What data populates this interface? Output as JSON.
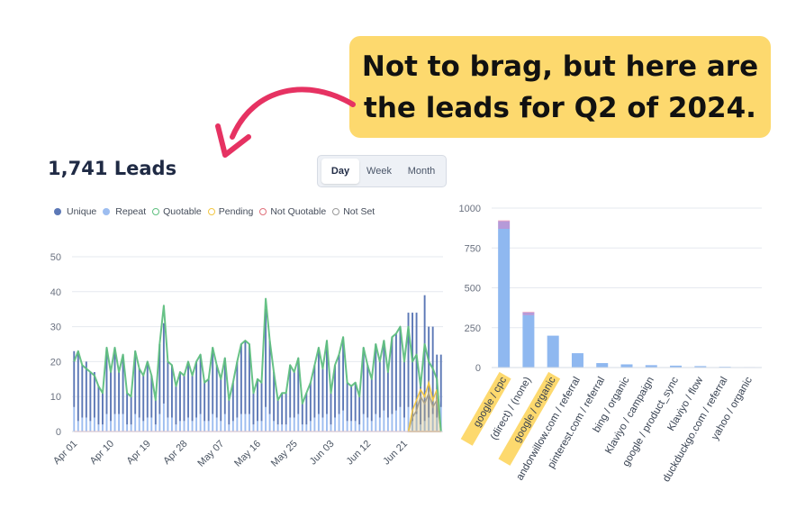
{
  "callout": {
    "line1": "Not to brag, but here are",
    "line2": "the leads for Q2 of 2024.",
    "background": "#fdd96e"
  },
  "arrow_color": "#e63262",
  "header": {
    "title": "1,741 Leads"
  },
  "range_toggle": {
    "options": [
      "Day",
      "Week",
      "Month"
    ],
    "selected": "Day"
  },
  "legend": [
    {
      "label": "Unique",
      "color": "#5c78b6",
      "style": "dot"
    },
    {
      "label": "Repeat",
      "color": "#9dbdf0",
      "style": "dot"
    },
    {
      "label": "Quotable",
      "color": "#5fbf7f",
      "style": "ring"
    },
    {
      "label": "Pending",
      "color": "#f2c744",
      "style": "ring"
    },
    {
      "label": "Not Quotable",
      "color": "#e0707a",
      "style": "ring"
    },
    {
      "label": "Not Set",
      "color": "#9a9a9a",
      "style": "ring"
    }
  ],
  "chart_data": [
    {
      "type": "bar",
      "subtype": "stacked bar with line overlay",
      "xlabel": "",
      "ylabel": "",
      "ylim": [
        0,
        50
      ],
      "yticks": [
        0,
        10,
        20,
        30,
        40,
        50
      ],
      "grid": true,
      "legend_position": "top-left",
      "xtick_labels": [
        "Apr 01",
        "Apr 10",
        "Apr 19",
        "Apr 28",
        "May 07",
        "May 16",
        "May 25",
        "Jun 03",
        "Jun 12",
        "Jun 21"
      ],
      "x_start": "2024-04-01",
      "x_end": "2024-06-30",
      "series": [
        {
          "name": "Unique",
          "values": [
            16,
            20,
            15,
            16,
            14,
            13,
            11,
            9,
            19,
            14,
            19,
            12,
            17,
            9,
            8,
            18,
            14,
            13,
            16,
            12,
            7,
            20,
            23,
            16,
            15,
            11,
            14,
            13,
            16,
            13,
            16,
            17,
            11,
            12,
            19,
            15,
            12,
            16,
            7,
            11,
            16,
            20,
            21,
            20,
            9,
            12,
            11,
            28,
            21,
            14,
            7,
            9,
            9,
            15,
            13,
            16,
            6,
            9,
            11,
            15,
            19,
            14,
            21,
            9,
            15,
            17,
            21,
            11,
            10,
            11,
            8,
            19,
            15,
            12,
            20,
            16,
            20,
            13,
            22,
            22,
            23,
            16,
            27,
            31,
            29,
            12,
            36,
            26,
            25,
            18,
            15
          ]
        },
        {
          "name": "Repeat",
          "values": [
            7,
            3,
            4,
            4,
            3,
            4,
            2,
            2,
            5,
            3,
            5,
            5,
            5,
            2,
            2,
            5,
            4,
            3,
            4,
            4,
            2,
            5,
            8,
            4,
            4,
            2,
            3,
            3,
            4,
            3,
            4,
            5,
            3,
            3,
            5,
            4,
            3,
            5,
            2,
            3,
            4,
            5,
            5,
            5,
            2,
            3,
            3,
            7,
            5,
            3,
            2,
            2,
            2,
            4,
            4,
            5,
            2,
            2,
            3,
            4,
            5,
            4,
            5,
            2,
            4,
            5,
            6,
            3,
            3,
            3,
            2,
            5,
            4,
            3,
            5,
            4,
            6,
            4,
            5,
            6,
            7,
            4,
            7,
            3,
            5,
            2,
            3,
            4,
            5,
            4,
            7
          ]
        },
        {
          "name": "Quotable",
          "values": [
            20,
            23,
            19,
            18,
            17,
            16,
            13,
            11,
            24,
            17,
            24,
            17,
            22,
            11,
            10,
            23,
            18,
            16,
            20,
            16,
            9,
            25,
            36,
            20,
            19,
            13,
            17,
            16,
            20,
            16,
            20,
            22,
            14,
            15,
            24,
            19,
            15,
            21,
            9,
            14,
            20,
            25,
            26,
            25,
            11,
            15,
            14,
            38,
            26,
            17,
            9,
            11,
            11,
            19,
            17,
            21,
            8,
            11,
            14,
            19,
            24,
            18,
            26,
            11,
            19,
            22,
            27,
            14,
            13,
            14,
            10,
            24,
            19,
            15,
            25,
            20,
            26,
            17,
            27,
            28,
            30,
            20,
            30,
            20,
            22,
            13,
            25,
            20,
            18,
            15,
            0
          ]
        },
        {
          "name": "Pending",
          "values": [
            0,
            0,
            0,
            0,
            0,
            0,
            0,
            0,
            0,
            0,
            0,
            0,
            0,
            0,
            0,
            0,
            0,
            0,
            0,
            0,
            0,
            0,
            0,
            0,
            0,
            0,
            0,
            0,
            0,
            0,
            0,
            0,
            0,
            0,
            0,
            0,
            0,
            0,
            0,
            0,
            0,
            0,
            0,
            0,
            0,
            0,
            0,
            0,
            0,
            0,
            0,
            0,
            0,
            0,
            0,
            0,
            0,
            0,
            0,
            0,
            0,
            0,
            0,
            0,
            0,
            0,
            0,
            0,
            0,
            0,
            0,
            0,
            0,
            0,
            0,
            0,
            0,
            0,
            0,
            0,
            0,
            0,
            0,
            6,
            9,
            12,
            10,
            14,
            9,
            12,
            0
          ]
        },
        {
          "name": "Not Quotable",
          "values": [
            0,
            0,
            0,
            0,
            0,
            0,
            0,
            0,
            0,
            0,
            0,
            0,
            0,
            0,
            0,
            0,
            0,
            0,
            0,
            0,
            0,
            0,
            0,
            0,
            0,
            0,
            0,
            0,
            0,
            0,
            0,
            0,
            0,
            0,
            0,
            0,
            0,
            0,
            0,
            0,
            0,
            0,
            0,
            0,
            0,
            0,
            0,
            0,
            0,
            0,
            0,
            0,
            0,
            0,
            0,
            0,
            0,
            0,
            0,
            0,
            0,
            0,
            0,
            0,
            0,
            0,
            0,
            0,
            0,
            0,
            0,
            0,
            0,
            0,
            0,
            0,
            0,
            0,
            0,
            0,
            0,
            0,
            0,
            0,
            0,
            0,
            0,
            0,
            0,
            0,
            0
          ]
        },
        {
          "name": "Not Set",
          "values": [
            0,
            0,
            0,
            0,
            0,
            0,
            0,
            0,
            0,
            0,
            0,
            0,
            0,
            0,
            0,
            0,
            0,
            0,
            0,
            0,
            0,
            0,
            0,
            0,
            0,
            0,
            0,
            0,
            0,
            0,
            0,
            0,
            0,
            0,
            0,
            0,
            0,
            0,
            0,
            0,
            0,
            0,
            0,
            0,
            0,
            0,
            0,
            0,
            0,
            0,
            0,
            0,
            0,
            0,
            0,
            0,
            0,
            0,
            0,
            0,
            0,
            0,
            0,
            0,
            0,
            0,
            0,
            0,
            0,
            0,
            0,
            0,
            0,
            0,
            0,
            0,
            0,
            0,
            0,
            0,
            0,
            0,
            0,
            4,
            6,
            10,
            8,
            11,
            7,
            9,
            0
          ]
        }
      ]
    },
    {
      "type": "bar",
      "subtype": "stacked bar",
      "xlabel": "",
      "ylabel": "",
      "ylim": [
        0,
        1000
      ],
      "yticks": [
        0,
        250,
        500,
        750,
        1000
      ],
      "grid": true,
      "categories": [
        "google / cpc",
        "(direct) / (none)",
        "google / organic",
        "andorwillow.com / referral",
        "pinterest.com / referral",
        "bing / organic",
        "Klaviyo / campaign",
        "google / product_sync",
        "Klaviyo / flow",
        "duckduckgo.com / referral",
        "yahoo / organic"
      ],
      "highlighted_categories": [
        "google / cpc",
        "google / organic"
      ],
      "highlight_color": "#fdd96e",
      "series": [
        {
          "color": "#8fb8f0",
          "values": [
            870,
            328,
            200,
            90,
            28,
            20,
            15,
            12,
            9,
            5,
            3
          ]
        },
        {
          "color": "#b69ad8",
          "values": [
            48,
            18,
            0,
            0,
            0,
            0,
            0,
            0,
            0,
            0,
            0
          ]
        },
        {
          "color": "#f3a9c0",
          "values": [
            5,
            4,
            0,
            0,
            0,
            0,
            0,
            0,
            0,
            0,
            0
          ]
        }
      ]
    }
  ]
}
